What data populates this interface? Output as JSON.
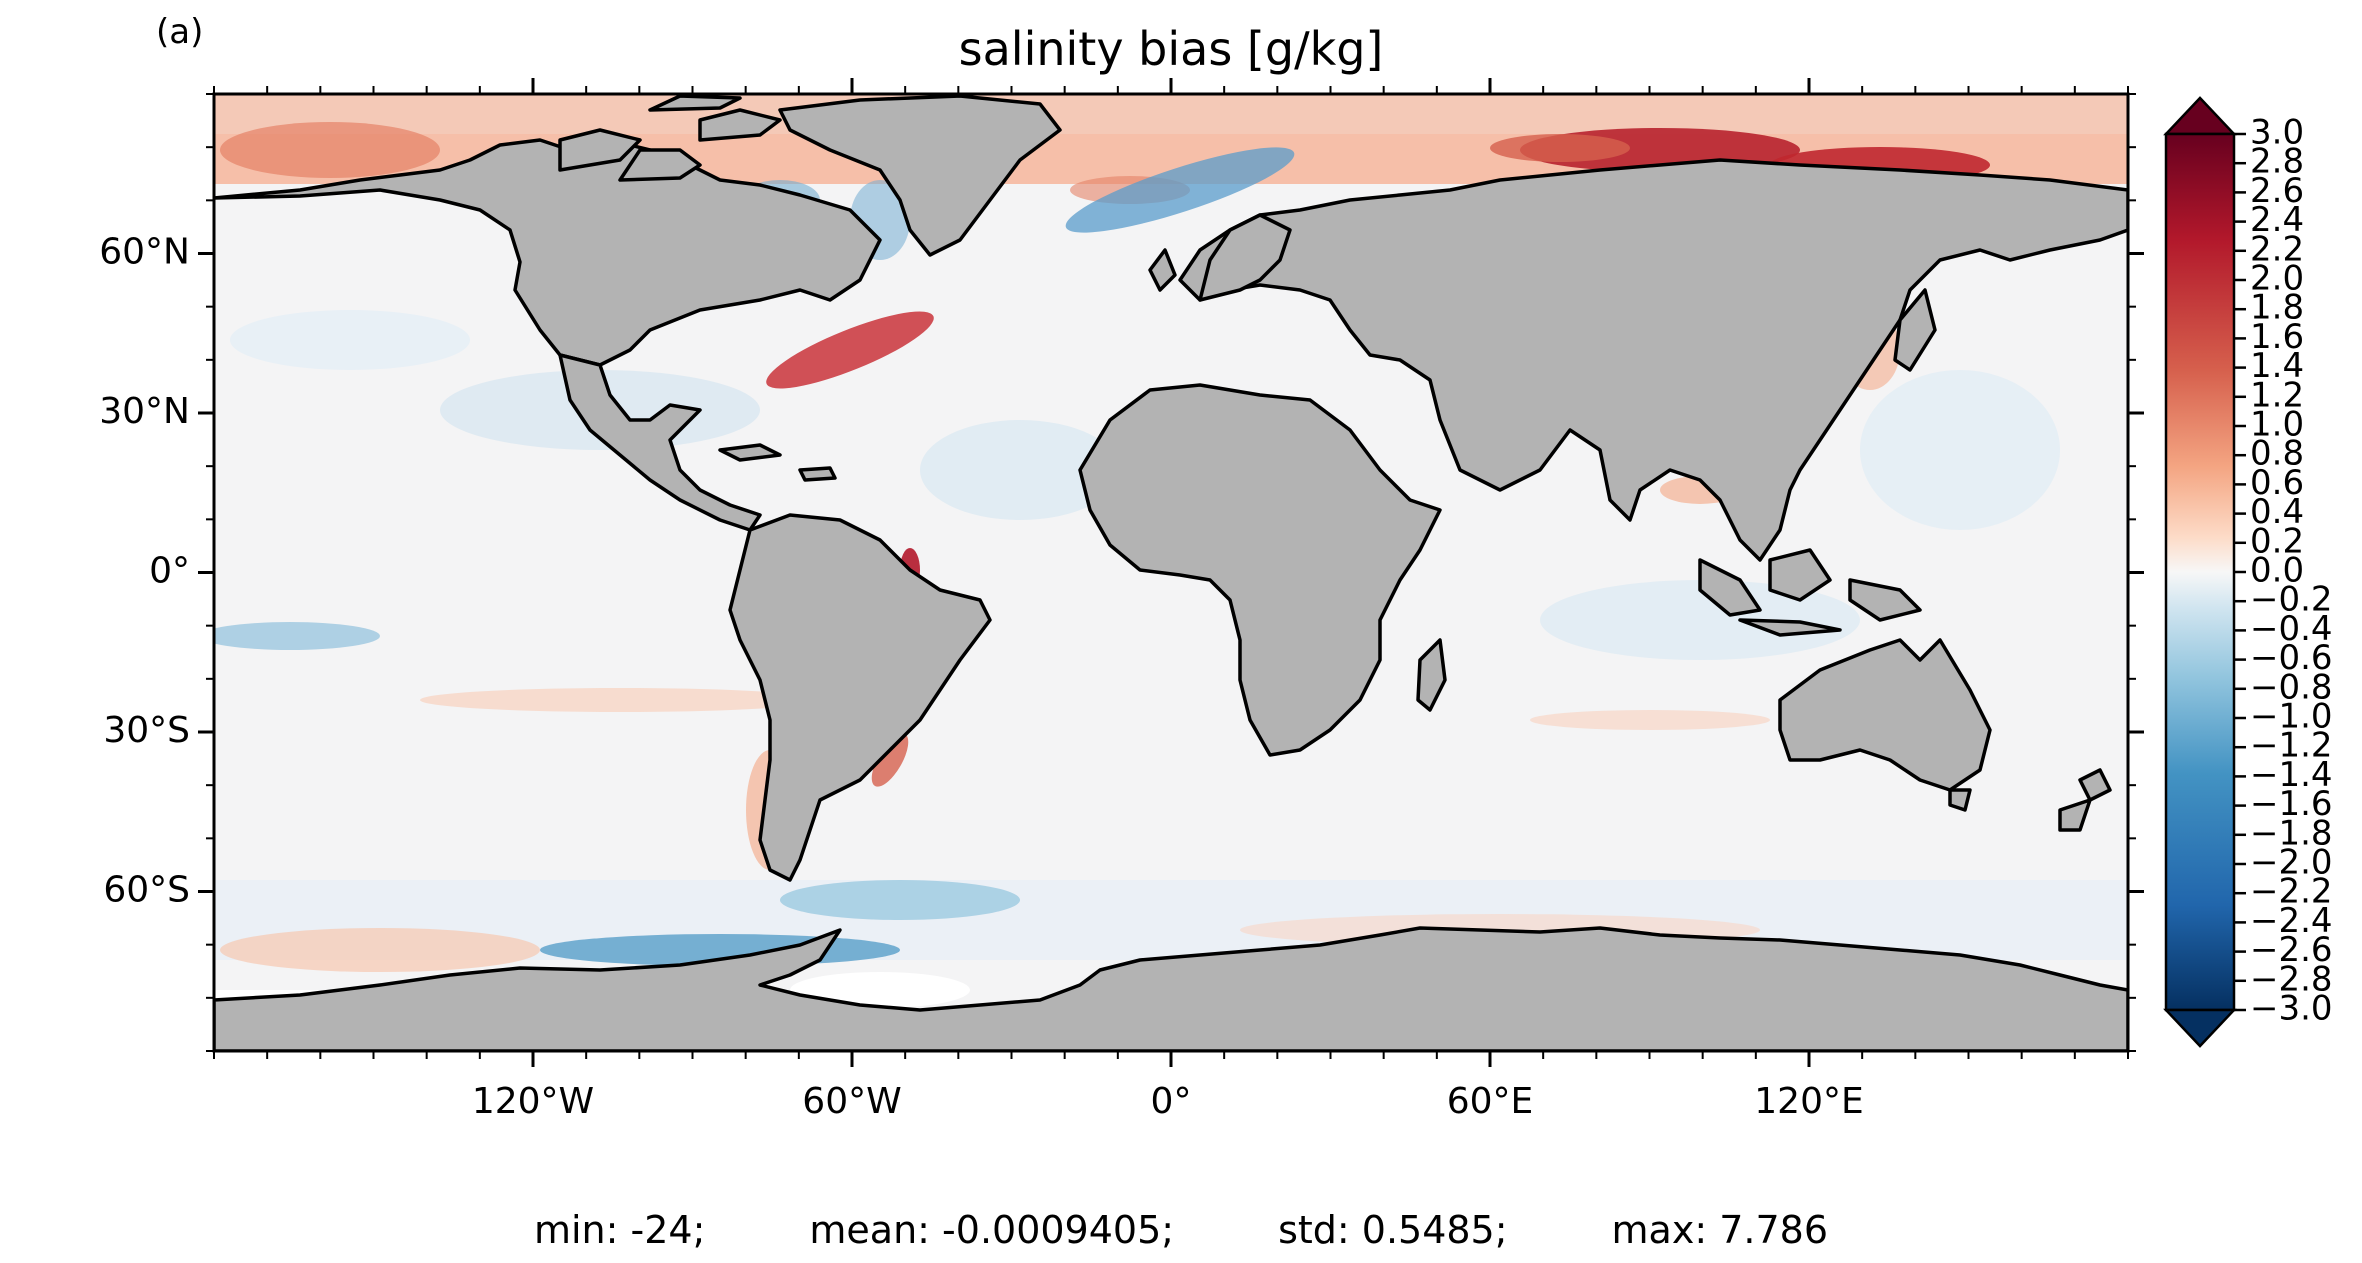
{
  "figure": {
    "panel_label": "(a)",
    "title": "salinity bias [g/kg]"
  },
  "map": {
    "projection": "PlateCarree",
    "lon_range": [
      -180,
      180
    ],
    "lat_range": [
      -90,
      90
    ],
    "land_color": "#b3b3b3",
    "coastline_color": "#000000",
    "lon_ticks": [
      {
        "value": -120,
        "label": "120°W"
      },
      {
        "value": -60,
        "label": "60°W"
      },
      {
        "value": 0,
        "label": "0°"
      },
      {
        "value": 60,
        "label": "60°E"
      },
      {
        "value": 120,
        "label": "120°E"
      }
    ],
    "lat_ticks": [
      {
        "value": 60,
        "label": "60°N"
      },
      {
        "value": 30,
        "label": "30°N"
      },
      {
        "value": 0,
        "label": "0°"
      },
      {
        "value": -30,
        "label": "30°S"
      },
      {
        "value": -60,
        "label": "60°S"
      }
    ]
  },
  "colorbar": {
    "colormap": "RdBu_r",
    "range": [
      -3.0,
      3.0
    ],
    "extend": "both",
    "low_color": "#053061",
    "mid_color": "#f7f7f7",
    "high_color": "#67001f",
    "tick_labels": [
      "3.0",
      "2.8",
      "2.6",
      "2.4",
      "2.2",
      "2.0",
      "1.8",
      "1.6",
      "1.4",
      "1.2",
      "1.0",
      "0.8",
      "0.6",
      "0.4",
      "0.2",
      "0.0",
      "−0.2",
      "−0.4",
      "−0.6",
      "−0.8",
      "−1.0",
      "−1.2",
      "−1.4",
      "−1.6",
      "−1.8",
      "−2.0",
      "−2.2",
      "−2.4",
      "−2.6",
      "−2.8",
      "−3.0"
    ]
  },
  "stats": {
    "min": "min: -24;",
    "mean": "mean: -0.0009405;",
    "std": "std: 0.5485;",
    "max": "max: 7.786"
  }
}
